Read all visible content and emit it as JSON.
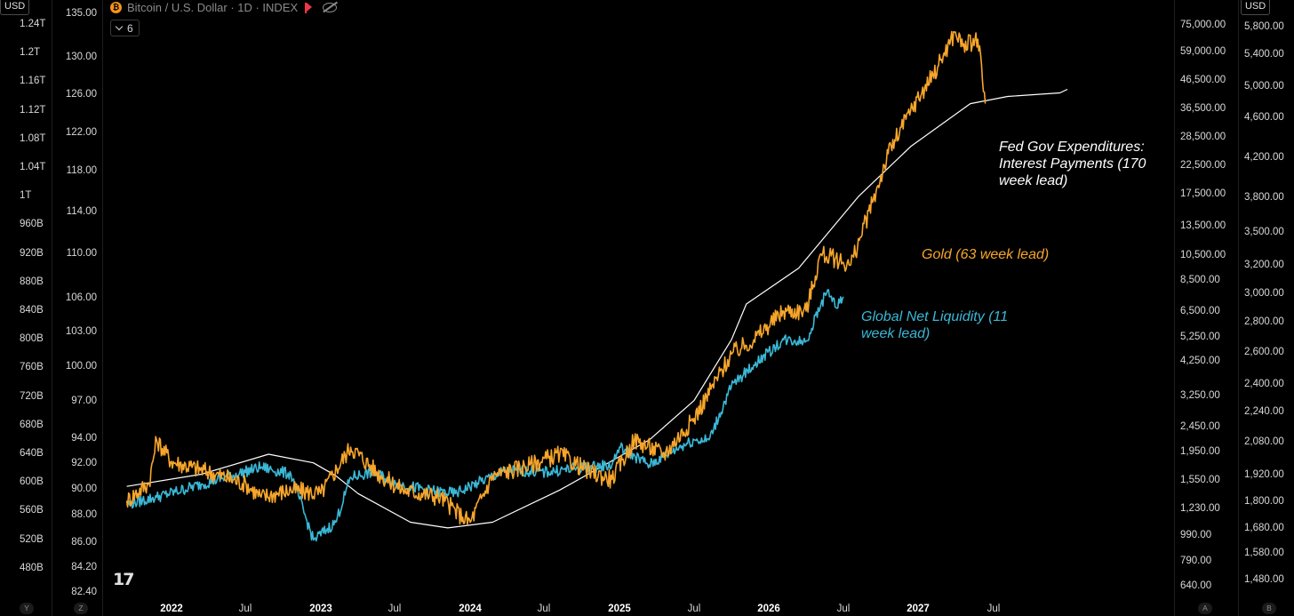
{
  "header": {
    "title": "Bitcoin / U.S. Dollar · 1D · INDEX",
    "collapse_count": "6",
    "currency_left": "USD",
    "currency_right": "USD"
  },
  "chart_data": {
    "type": "line",
    "x_ticks": [
      "2022",
      "Jul",
      "2023",
      "Jul",
      "2024",
      "Jul",
      "2025",
      "Jul",
      "2026",
      "Jul",
      "2027",
      "Jul"
    ],
    "axes": {
      "y_far_left": [
        "1.24T",
        "1.2T",
        "1.16T",
        "1.12T",
        "1.08T",
        "1.04T",
        "1T",
        "960B",
        "920B",
        "880B",
        "840B",
        "800B",
        "760B",
        "720B",
        "680B",
        "640B",
        "600B",
        "560B",
        "520B",
        "480B"
      ],
      "y_left": [
        "135.00",
        "130.00",
        "126.00",
        "122.00",
        "118.00",
        "114.00",
        "110.00",
        "106.00",
        "103.00",
        "100.00",
        "97.00",
        "94.00",
        "92.00",
        "90.00",
        "88.00",
        "86.00",
        "84.20",
        "82.40"
      ],
      "y_right": [
        "75,000.00",
        "59,000.00",
        "46,500.00",
        "36,500.00",
        "28,500.00",
        "22,500.00",
        "17,500.00",
        "13,500.00",
        "10,500.00",
        "8,500.00",
        "6,500.00",
        "5,250.00",
        "4,250.00",
        "3,250.00",
        "2,450.00",
        "1,950.00",
        "1,550.00",
        "1,230.00",
        "990.00",
        "790.00",
        "640.00"
      ],
      "y_far_right": [
        "5,800.00",
        "5,400.00",
        "5,000.00",
        "4,600.00",
        "4,200.00",
        "3,800.00",
        "3,500.00",
        "3,200.00",
        "3,000.00",
        "2,800.00",
        "2,600.00",
        "2,400.00",
        "2,240.00",
        "2,080.00",
        "1,920.00",
        "1,800.00",
        "1,680.00",
        "1,580.00",
        "1,480.00"
      ]
    },
    "scale_buttons": [
      "Y",
      "Z",
      "A",
      "B"
    ],
    "series": [
      {
        "name": "Fed Gov Expenditures: Interest Payments (170 week lead)",
        "color": "#ffffff",
        "x": [
          2021.7,
          2022.2,
          2022.65,
          2022.95,
          2023.1,
          2023.25,
          2023.6,
          2023.85,
          2024.15,
          2024.6,
          2025.2,
          2025.5,
          2025.75,
          2025.85,
          2026.2,
          2026.6,
          2026.95,
          2027.35,
          2027.6,
          2027.95,
          2028.0
        ],
        "y": [
          595,
          612,
          640,
          628,
          610,
          585,
          545,
          537,
          545,
          590,
          660,
          715,
          800,
          850,
          900,
          1000,
          1070,
          1130,
          1140,
          1145,
          1150
        ]
      },
      {
        "name": "Gold (63 week lead)",
        "color": "#f7a62b",
        "x": [
          2021.7,
          2021.85,
          2021.9,
          2022.0,
          2022.3,
          2022.5,
          2022.6,
          2022.8,
          2023.0,
          2023.2,
          2023.4,
          2023.55,
          2023.8,
          2023.95,
          2024.0,
          2024.15,
          2024.4,
          2024.6,
          2024.8,
          2024.95,
          2025.1,
          2025.3,
          2025.5,
          2025.75,
          2025.9,
          2026.1,
          2026.25,
          2026.35,
          2026.55,
          2026.7,
          2026.8,
          2026.95,
          2027.1,
          2027.25,
          2027.3,
          2027.4,
          2027.45
        ],
        "y": [
          575,
          600,
          660,
          630,
          612,
          598,
          580,
          590,
          585,
          650,
          610,
          590,
          580,
          552,
          545,
          610,
          625,
          640,
          615,
          605,
          660,
          640,
          690,
          780,
          800,
          840,
          840,
          920,
          905,
          995,
          1060,
          1120,
          1170,
          1230,
          1210,
          1220,
          1130
        ]
      },
      {
        "name": "Global Net Liquidity (11 week lead)",
        "color": "#3ab8d6",
        "x": [
          2021.7,
          2021.9,
          2022.2,
          2022.4,
          2022.6,
          2022.8,
          2022.95,
          2023.1,
          2023.2,
          2023.35,
          2023.5,
          2023.7,
          2023.9,
          2024.05,
          2024.25,
          2024.5,
          2024.7,
          2024.95,
          2025.0,
          2025.2,
          2025.4,
          2025.5,
          2025.6,
          2025.75,
          2025.9,
          2026.1,
          2026.25,
          2026.35,
          2026.4,
          2026.45,
          2026.5
        ],
        "y": [
          570,
          580,
          598,
          610,
          622,
          612,
          520,
          545,
          608,
          615,
          600,
          590,
          585,
          600,
          618,
          615,
          620,
          625,
          650,
          625,
          650,
          660,
          660,
          735,
          765,
          800,
          798,
          850,
          870,
          845,
          860
        ]
      }
    ]
  },
  "annotations": {
    "fed": [
      "Fed Gov Expenditures:",
      "Interest Payments (170",
      "week lead)"
    ],
    "gold": [
      "Gold (63 week lead)"
    ],
    "gnl": [
      "Global Net Liquidity (11",
      "week lead)"
    ]
  },
  "colors": {
    "background": "#000000",
    "gold": "#f7a62b",
    "liquidity": "#3ab8d6",
    "fed": "#ffffff"
  }
}
